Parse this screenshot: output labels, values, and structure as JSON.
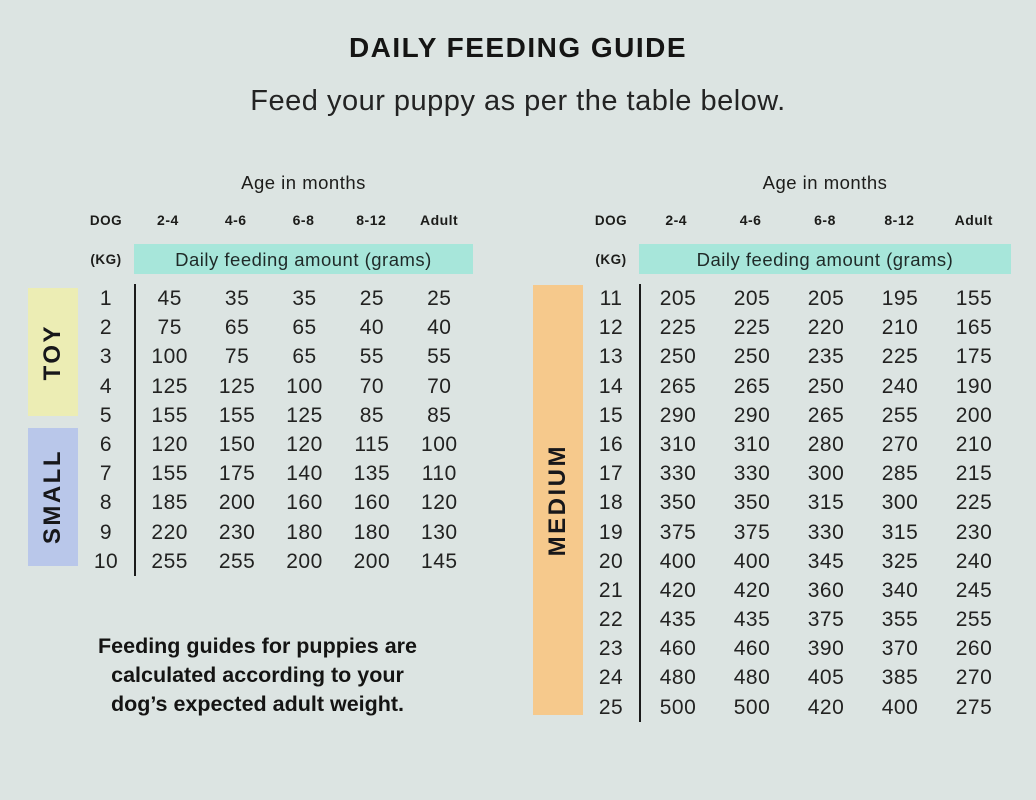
{
  "header": {
    "title": "DAILY FEEDING GUIDE",
    "subtitle": "Feed your puppy as per the table below."
  },
  "colors": {
    "background": "#dce4e2",
    "highlight_band": "#a7e6da",
    "toy": "#ecedb4",
    "small": "#b9c7ea",
    "medium": "#f6c98c",
    "text": "#1c1c1a",
    "divider": "#1b1b1b"
  },
  "tables": [
    {
      "age_header": "Age in months",
      "dog_label": "DOG",
      "kg_label": "(KG)",
      "age_columns": [
        "2-4",
        "4-6",
        "6-8",
        "8-12",
        "Adult"
      ],
      "band_label": "Daily feeding amount (grams)",
      "categories": [
        {
          "label": "TOY",
          "color": "#ecedb4",
          "row_count": 5
        },
        {
          "label": "SMALL",
          "color": "#b9c7ea",
          "row_count": 5
        }
      ],
      "rows": [
        {
          "kg": 1,
          "amounts": [
            45,
            35,
            35,
            25,
            25
          ]
        },
        {
          "kg": 2,
          "amounts": [
            75,
            65,
            65,
            40,
            40
          ]
        },
        {
          "kg": 3,
          "amounts": [
            100,
            75,
            65,
            55,
            55
          ]
        },
        {
          "kg": 4,
          "amounts": [
            125,
            125,
            100,
            70,
            70
          ]
        },
        {
          "kg": 5,
          "amounts": [
            155,
            155,
            125,
            85,
            85
          ]
        },
        {
          "kg": 6,
          "amounts": [
            120,
            150,
            120,
            115,
            100
          ]
        },
        {
          "kg": 7,
          "amounts": [
            155,
            175,
            140,
            135,
            110
          ]
        },
        {
          "kg": 8,
          "amounts": [
            185,
            200,
            160,
            160,
            120
          ]
        },
        {
          "kg": 9,
          "amounts": [
            220,
            230,
            180,
            180,
            130
          ]
        },
        {
          "kg": 10,
          "amounts": [
            255,
            255,
            200,
            200,
            145
          ]
        }
      ]
    },
    {
      "age_header": "Age in months",
      "dog_label": "DOG",
      "kg_label": "(KG)",
      "age_columns": [
        "2-4",
        "4-6",
        "6-8",
        "8-12",
        "Adult"
      ],
      "band_label": "Daily feeding amount (grams)",
      "categories": [
        {
          "label": "MEDIUM",
          "color": "#f6c98c",
          "row_count": 15
        }
      ],
      "rows": [
        {
          "kg": 11,
          "amounts": [
            205,
            205,
            205,
            195,
            155
          ]
        },
        {
          "kg": 12,
          "amounts": [
            225,
            225,
            220,
            210,
            165
          ]
        },
        {
          "kg": 13,
          "amounts": [
            250,
            250,
            235,
            225,
            175
          ]
        },
        {
          "kg": 14,
          "amounts": [
            265,
            265,
            250,
            240,
            190
          ]
        },
        {
          "kg": 15,
          "amounts": [
            290,
            290,
            265,
            255,
            200
          ]
        },
        {
          "kg": 16,
          "amounts": [
            310,
            310,
            280,
            270,
            210
          ]
        },
        {
          "kg": 17,
          "amounts": [
            330,
            330,
            300,
            285,
            215
          ]
        },
        {
          "kg": 18,
          "amounts": [
            350,
            350,
            315,
            300,
            225
          ]
        },
        {
          "kg": 19,
          "amounts": [
            375,
            375,
            330,
            315,
            230
          ]
        },
        {
          "kg": 20,
          "amounts": [
            400,
            400,
            345,
            325,
            240
          ]
        },
        {
          "kg": 21,
          "amounts": [
            420,
            420,
            360,
            340,
            245
          ]
        },
        {
          "kg": 22,
          "amounts": [
            435,
            435,
            375,
            355,
            255
          ]
        },
        {
          "kg": 23,
          "amounts": [
            460,
            460,
            390,
            370,
            260
          ]
        },
        {
          "kg": 24,
          "amounts": [
            480,
            480,
            405,
            385,
            270
          ]
        },
        {
          "kg": 25,
          "amounts": [
            500,
            500,
            420,
            400,
            275
          ]
        }
      ]
    }
  ],
  "note_lines": [
    "Feeding guides for puppies are",
    "calculated according to your",
    "dog’s expected adult weight."
  ]
}
